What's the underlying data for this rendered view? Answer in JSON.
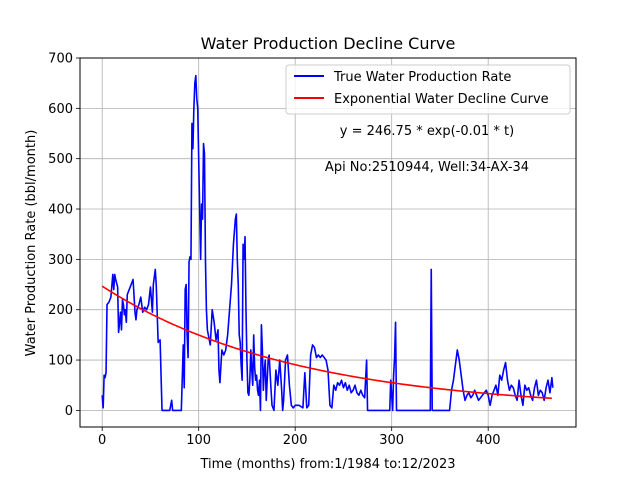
{
  "chart_data": {
    "type": "line",
    "title": "Water Production Decline Curve",
    "xlabel": "Time (months) from:1/1984 to:12/2023",
    "ylabel": "Water Production Rate (bbl/month)",
    "xlim": [
      -23,
      491
    ],
    "ylim": [
      -33,
      700
    ],
    "xticks": [
      0,
      100,
      200,
      300,
      400
    ],
    "yticks": [
      0,
      100,
      200,
      300,
      400,
      500,
      600,
      700
    ],
    "grid": true,
    "legend_position": "top-right",
    "annotations": [
      "y = 246.75 * exp(-0.01 * t)",
      "Api No:2510944, Well:34-AX-34"
    ],
    "series": [
      {
        "name": "True Water Production Rate",
        "color": "#0000ff",
        "points": [
          [
            0,
            30
          ],
          [
            1,
            5
          ],
          [
            2,
            70
          ],
          [
            3,
            65
          ],
          [
            4,
            75
          ],
          [
            5,
            210
          ],
          [
            7,
            215
          ],
          [
            9,
            225
          ],
          [
            11,
            270
          ],
          [
            12,
            240
          ],
          [
            13,
            270
          ],
          [
            14,
            260
          ],
          [
            16,
            245
          ],
          [
            17,
            155
          ],
          [
            18,
            175
          ],
          [
            19,
            195
          ],
          [
            20,
            160
          ],
          [
            21,
            220
          ],
          [
            22,
            210
          ],
          [
            23,
            190
          ],
          [
            24,
            200
          ],
          [
            25,
            175
          ],
          [
            26,
            230
          ],
          [
            28,
            240
          ],
          [
            30,
            250
          ],
          [
            32,
            260
          ],
          [
            34,
            195
          ],
          [
            35,
            180
          ],
          [
            36,
            200
          ],
          [
            38,
            210
          ],
          [
            40,
            225
          ],
          [
            42,
            195
          ],
          [
            44,
            205
          ],
          [
            46,
            200
          ],
          [
            48,
            210
          ],
          [
            50,
            245
          ],
          [
            52,
            195
          ],
          [
            53,
            250
          ],
          [
            55,
            280
          ],
          [
            56,
            250
          ],
          [
            58,
            135
          ],
          [
            60,
            140
          ],
          [
            62,
            0
          ],
          [
            66,
            0
          ],
          [
            70,
            0
          ],
          [
            72,
            20
          ],
          [
            73,
            0
          ],
          [
            76,
            0
          ],
          [
            78,
            0
          ],
          [
            80,
            0
          ],
          [
            82,
            0
          ],
          [
            84,
            130
          ],
          [
            85,
            45
          ],
          [
            86,
            240
          ],
          [
            87,
            250
          ],
          [
            88,
            150
          ],
          [
            89,
            105
          ],
          [
            90,
            295
          ],
          [
            91,
            305
          ],
          [
            92,
            300
          ],
          [
            93,
            570
          ],
          [
            94,
            520
          ],
          [
            95,
            600
          ],
          [
            96,
            650
          ],
          [
            97,
            665
          ],
          [
            98,
            620
          ],
          [
            99,
            600
          ],
          [
            100,
            500
          ],
          [
            101,
            400
          ],
          [
            102,
            300
          ],
          [
            103,
            410
          ],
          [
            104,
            380
          ],
          [
            105,
            530
          ],
          [
            106,
            510
          ],
          [
            107,
            300
          ],
          [
            108,
            200
          ],
          [
            109,
            160
          ],
          [
            110,
            150
          ],
          [
            112,
            130
          ],
          [
            114,
            200
          ],
          [
            116,
            175
          ],
          [
            118,
            140
          ],
          [
            120,
            160
          ],
          [
            121,
            80
          ],
          [
            122,
            55
          ],
          [
            124,
            120
          ],
          [
            126,
            110
          ],
          [
            128,
            120
          ],
          [
            130,
            150
          ],
          [
            132,
            200
          ],
          [
            134,
            250
          ],
          [
            136,
            330
          ],
          [
            138,
            380
          ],
          [
            139,
            390
          ],
          [
            140,
            300
          ],
          [
            141,
            250
          ],
          [
            142,
            150
          ],
          [
            143,
            135
          ],
          [
            144,
            90
          ],
          [
            145,
            60
          ],
          [
            146,
            330
          ],
          [
            147,
            300
          ],
          [
            148,
            345
          ],
          [
            149,
            200
          ],
          [
            150,
            100
          ],
          [
            151,
            35
          ],
          [
            152,
            30
          ],
          [
            153,
            60
          ],
          [
            154,
            120
          ],
          [
            155,
            80
          ],
          [
            156,
            50
          ],
          [
            157,
            150
          ],
          [
            158,
            85
          ],
          [
            159,
            60
          ],
          [
            160,
            70
          ],
          [
            161,
            40
          ],
          [
            162,
            30
          ],
          [
            163,
            60
          ],
          [
            164,
            0
          ],
          [
            165,
            170
          ],
          [
            166,
            120
          ],
          [
            167,
            40
          ],
          [
            168,
            80
          ],
          [
            169,
            100
          ],
          [
            170,
            20
          ],
          [
            172,
            100
          ],
          [
            173,
            110
          ],
          [
            174,
            75
          ],
          [
            175,
            40
          ],
          [
            176,
            10
          ],
          [
            178,
            0
          ],
          [
            180,
            80
          ],
          [
            182,
            50
          ],
          [
            184,
            100
          ],
          [
            186,
            40
          ],
          [
            187,
            0
          ],
          [
            188,
            20
          ],
          [
            190,
            100
          ],
          [
            192,
            110
          ],
          [
            194,
            50
          ],
          [
            196,
            10
          ],
          [
            198,
            5
          ],
          [
            200,
            10
          ],
          [
            204,
            10
          ],
          [
            208,
            5
          ],
          [
            210,
            75
          ],
          [
            212,
            5
          ],
          [
            214,
            10
          ],
          [
            216,
            110
          ],
          [
            218,
            130
          ],
          [
            220,
            125
          ],
          [
            222,
            105
          ],
          [
            224,
            110
          ],
          [
            226,
            105
          ],
          [
            228,
            110
          ],
          [
            230,
            105
          ],
          [
            232,
            100
          ],
          [
            234,
            80
          ],
          [
            236,
            10
          ],
          [
            238,
            5
          ],
          [
            240,
            50
          ],
          [
            242,
            40
          ],
          [
            244,
            55
          ],
          [
            246,
            50
          ],
          [
            248,
            60
          ],
          [
            250,
            45
          ],
          [
            252,
            55
          ],
          [
            254,
            40
          ],
          [
            256,
            50
          ],
          [
            258,
            35
          ],
          [
            260,
            40
          ],
          [
            262,
            50
          ],
          [
            264,
            35
          ],
          [
            266,
            30
          ],
          [
            268,
            40
          ],
          [
            270,
            30
          ],
          [
            272,
            25
          ],
          [
            274,
            100
          ],
          [
            275,
            0
          ],
          [
            280,
            0
          ],
          [
            290,
            0
          ],
          [
            298,
            0
          ],
          [
            299,
            60
          ],
          [
            301,
            0
          ],
          [
            302,
            70
          ],
          [
            303,
            105
          ],
          [
            304,
            175
          ],
          [
            305,
            0
          ],
          [
            310,
            0
          ],
          [
            320,
            0
          ],
          [
            330,
            0
          ],
          [
            340,
            0
          ],
          [
            341,
            280
          ],
          [
            342,
            0
          ],
          [
            345,
            0
          ],
          [
            350,
            0
          ],
          [
            360,
            0
          ],
          [
            362,
            40
          ],
          [
            364,
            60
          ],
          [
            366,
            90
          ],
          [
            368,
            120
          ],
          [
            370,
            100
          ],
          [
            372,
            70
          ],
          [
            374,
            40
          ],
          [
            376,
            20
          ],
          [
            378,
            30
          ],
          [
            380,
            35
          ],
          [
            382,
            25
          ],
          [
            384,
            30
          ],
          [
            386,
            40
          ],
          [
            388,
            30
          ],
          [
            390,
            20
          ],
          [
            392,
            25
          ],
          [
            394,
            30
          ],
          [
            396,
            35
          ],
          [
            398,
            40
          ],
          [
            400,
            30
          ],
          [
            402,
            10
          ],
          [
            404,
            30
          ],
          [
            406,
            40
          ],
          [
            408,
            50
          ],
          [
            410,
            30
          ],
          [
            412,
            70
          ],
          [
            414,
            60
          ],
          [
            416,
            80
          ],
          [
            418,
            95
          ],
          [
            420,
            60
          ],
          [
            422,
            40
          ],
          [
            424,
            50
          ],
          [
            426,
            45
          ],
          [
            428,
            30
          ],
          [
            430,
            20
          ],
          [
            432,
            60
          ],
          [
            434,
            30
          ],
          [
            436,
            10
          ],
          [
            438,
            50
          ],
          [
            440,
            40
          ],
          [
            442,
            45
          ],
          [
            444,
            30
          ],
          [
            446,
            20
          ],
          [
            448,
            45
          ],
          [
            450,
            60
          ],
          [
            452,
            30
          ],
          [
            454,
            40
          ],
          [
            456,
            35
          ],
          [
            458,
            20
          ],
          [
            460,
            45
          ],
          [
            462,
            60
          ],
          [
            464,
            35
          ],
          [
            466,
            65
          ],
          [
            467,
            45
          ]
        ]
      },
      {
        "name": "Exponential Water Decline Curve",
        "color": "#ff0000",
        "a": 246.75,
        "b": -0.005,
        "x_start": 0,
        "x_end": 467
      }
    ]
  }
}
